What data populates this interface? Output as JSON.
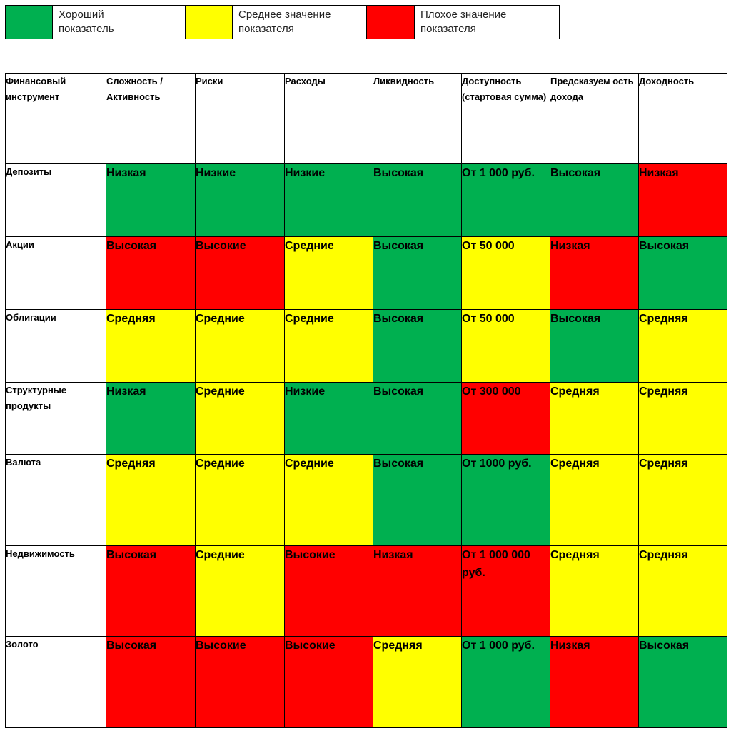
{
  "colors": {
    "good": "#00b050",
    "medium": "#ffff00",
    "bad": "#ff0000"
  },
  "legend": [
    {
      "status": "good",
      "label": "Хороший\nпоказатель"
    },
    {
      "status": "medium",
      "label": "Среднее значение\nпоказателя"
    },
    {
      "status": "bad",
      "label": "Плохое значение\nпоказателя"
    }
  ],
  "table": {
    "headers": [
      "Финансовый инструмент",
      "Сложность / Активность",
      "Риски",
      "Расходы",
      "Ликвидность",
      "Доступность (стартовая сумма)",
      "Предсказуем ость дохода",
      "Доходность"
    ],
    "rows": [
      {
        "name": "Депозиты",
        "cells": [
          {
            "text": "Низкая",
            "status": "good"
          },
          {
            "text": "Низкие",
            "status": "good"
          },
          {
            "text": "Низкие",
            "status": "good"
          },
          {
            "text": "Высокая",
            "status": "good"
          },
          {
            "text": "От 1 000 руб.",
            "status": "good"
          },
          {
            "text": "Высокая",
            "status": "good"
          },
          {
            "text": "Низкая",
            "status": "bad"
          }
        ]
      },
      {
        "name": "Акции",
        "cells": [
          {
            "text": "Высокая",
            "status": "bad"
          },
          {
            "text": "Высокие",
            "status": "bad"
          },
          {
            "text": "Средние",
            "status": "medium"
          },
          {
            "text": "Высокая",
            "status": "good"
          },
          {
            "text": "От 50 000",
            "status": "medium"
          },
          {
            "text": "Низкая",
            "status": "bad"
          },
          {
            "text": "Высокая",
            "status": "good"
          }
        ]
      },
      {
        "name": "Облигации",
        "cells": [
          {
            "text": "Средняя",
            "status": "medium"
          },
          {
            "text": "Средние",
            "status": "medium"
          },
          {
            "text": "Средние",
            "status": "medium"
          },
          {
            "text": "Высокая",
            "status": "good"
          },
          {
            "text": "От 50 000",
            "status": "medium"
          },
          {
            "text": "Высокая",
            "status": "good"
          },
          {
            "text": "Средняя",
            "status": "medium"
          }
        ]
      },
      {
        "name": "Структурные продукты",
        "cells": [
          {
            "text": "Низкая",
            "status": "good"
          },
          {
            "text": "Средние",
            "status": "medium"
          },
          {
            "text": "Низкие",
            "status": "good"
          },
          {
            "text": "Высокая",
            "status": "good"
          },
          {
            "text": "От 300 000",
            "status": "bad"
          },
          {
            "text": "Средняя",
            "status": "medium"
          },
          {
            "text": "Средняя",
            "status": "medium"
          }
        ]
      },
      {
        "name": "Валюта",
        "cells": [
          {
            "text": "Средняя",
            "status": "medium"
          },
          {
            "text": "Средние",
            "status": "medium"
          },
          {
            "text": "Средние",
            "status": "medium"
          },
          {
            "text": "Высокая",
            "status": "good"
          },
          {
            "text": "От 1000 руб.",
            "status": "good"
          },
          {
            "text": "Средняя",
            "status": "medium"
          },
          {
            "text": "Средняя",
            "status": "medium"
          }
        ]
      },
      {
        "name": "Недвижимость",
        "cells": [
          {
            "text": "Высокая",
            "status": "bad"
          },
          {
            "text": "Средние",
            "status": "medium"
          },
          {
            "text": "Высокие",
            "status": "bad"
          },
          {
            "text": "Низкая",
            "status": "bad"
          },
          {
            "text": "От 1 000 000 руб.",
            "status": "bad"
          },
          {
            "text": "Средняя",
            "status": "medium"
          },
          {
            "text": "Средняя",
            "status": "medium"
          }
        ]
      },
      {
        "name": "Золото",
        "cells": [
          {
            "text": "Высокая",
            "status": "bad"
          },
          {
            "text": "Высокие",
            "status": "bad"
          },
          {
            "text": "Высокие",
            "status": "bad"
          },
          {
            "text": "Средняя",
            "status": "medium"
          },
          {
            "text": "От 1 000 руб.",
            "status": "good"
          },
          {
            "text": "Низкая",
            "status": "bad"
          },
          {
            "text": "Высокая",
            "status": "good"
          }
        ]
      }
    ]
  }
}
